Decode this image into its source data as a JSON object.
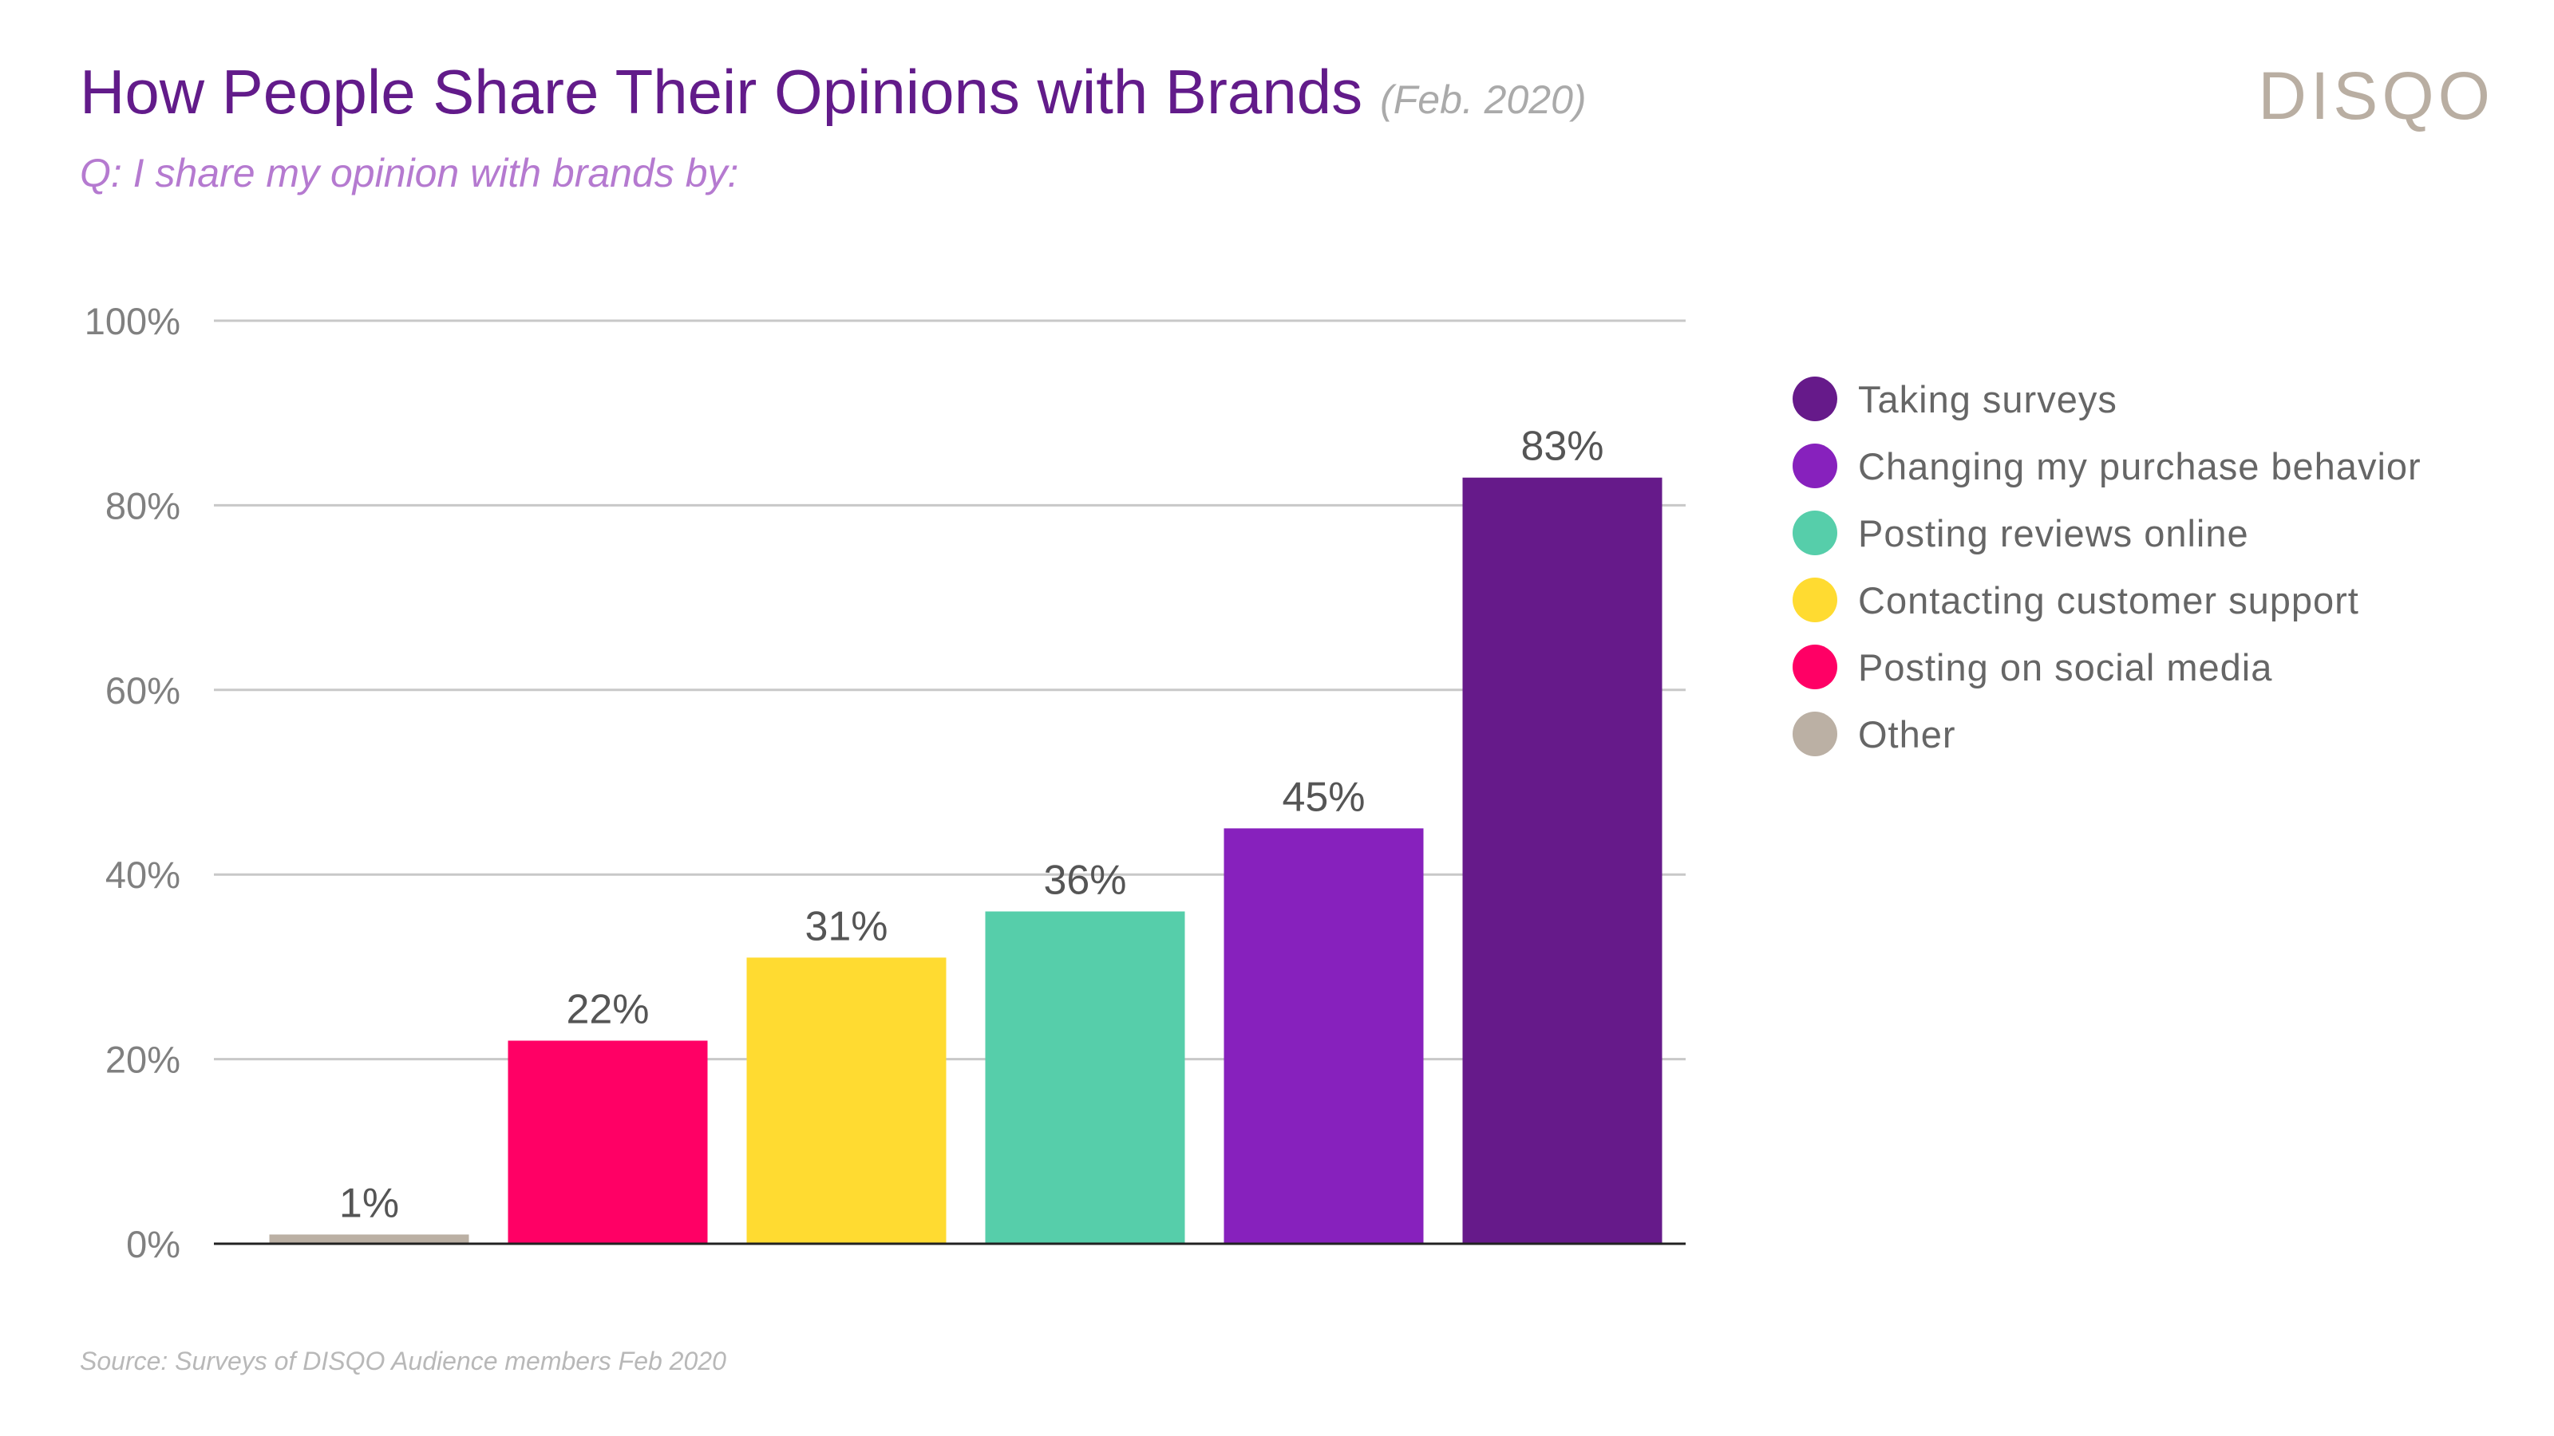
{
  "header": {
    "title": "How People Share Their Opinions with Brands",
    "date": "(Feb. 2020)",
    "subtitle": "Q: I share my opinion with brands by:",
    "logo": "DISQO"
  },
  "footer": {
    "source": "Source: Surveys of DISQO Audience members Feb 2020"
  },
  "chart_data": {
    "type": "bar",
    "title": "How People Share Their Opinions with Brands",
    "xlabel": "",
    "ylabel": "",
    "ylim": [
      0,
      100
    ],
    "y_ticks": [
      0,
      20,
      40,
      60,
      80,
      100
    ],
    "y_tick_labels": [
      "0%",
      "20%",
      "40%",
      "60%",
      "80%",
      "100%"
    ],
    "grid": true,
    "legend_position": "right",
    "categories": [
      "Other",
      "Posting on social media",
      "Contacting customer support",
      "Posting reviews online",
      "Changing my purchase behavior",
      "Taking surveys"
    ],
    "values": [
      1,
      22,
      31,
      36,
      45,
      83
    ],
    "data_labels": [
      "1%",
      "22%",
      "31%",
      "36%",
      "45%",
      "83%"
    ],
    "colors": [
      "#bbb0a4",
      "#ff0065",
      "#ffdb31",
      "#56ceaa",
      "#8721bd",
      "#661a8a"
    ],
    "legend": [
      {
        "label": "Taking surveys",
        "color": "#661a8a"
      },
      {
        "label": "Changing my purchase behavior",
        "color": "#8721bd"
      },
      {
        "label": "Posting reviews online",
        "color": "#56ceaa"
      },
      {
        "label": "Contacting customer support",
        "color": "#ffdb31"
      },
      {
        "label": "Posting on social media",
        "color": "#ff0065"
      },
      {
        "label": "Other",
        "color": "#bbb0a4"
      }
    ]
  }
}
